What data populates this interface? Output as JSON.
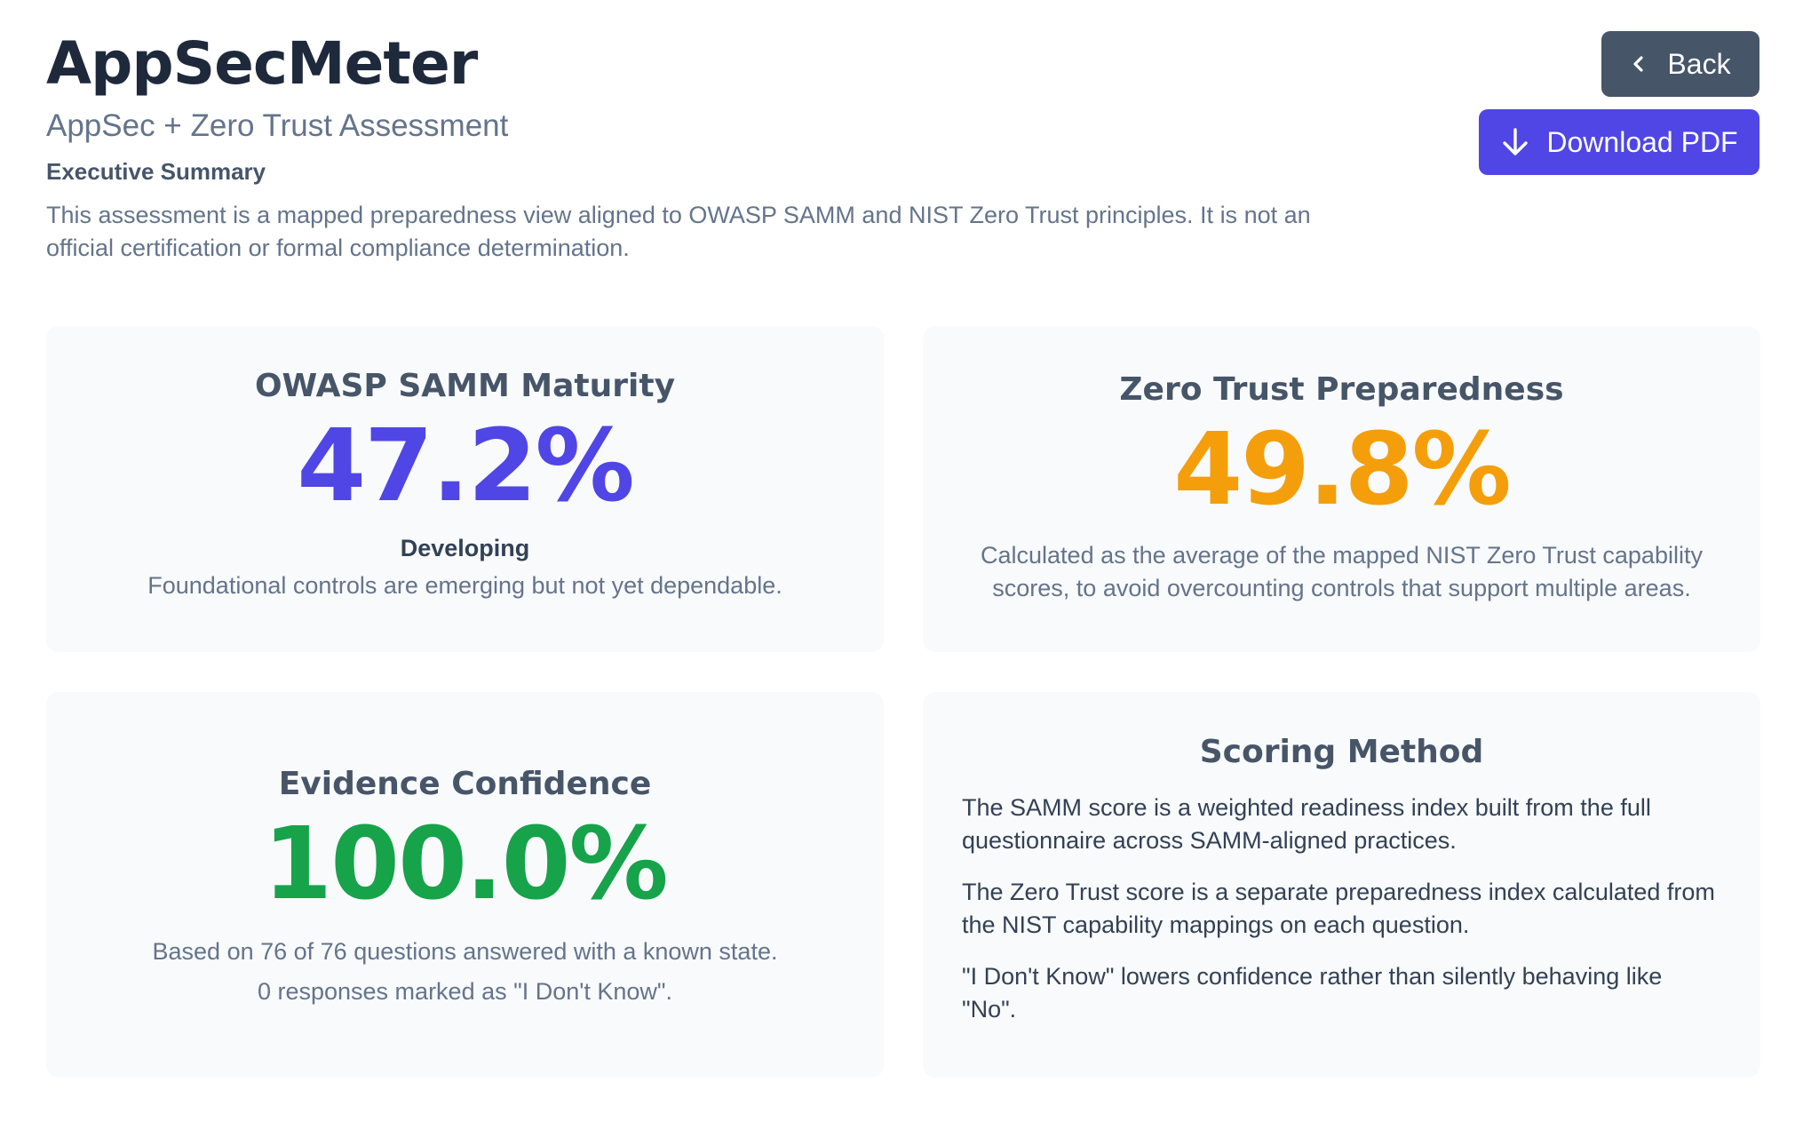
{
  "header": {
    "app_title": "AppSecMeter",
    "subtitle": "AppSec + Zero Trust Assessment",
    "section_label": "Executive Summary",
    "summary": "This assessment is a mapped preparedness view aligned to OWASP SAMM and NIST Zero Trust principles. It is not an official certification or formal compliance determination."
  },
  "actions": {
    "back_label": "Back",
    "back_icon": "chevron-left-icon",
    "download_label": "Download PDF",
    "download_icon": "arrow-down-icon",
    "back_color": "#475569",
    "download_color": "#4f46e5"
  },
  "cards": {
    "samm": {
      "title": "OWASP SAMM Maturity",
      "value": "47.2%",
      "level": "Developing",
      "description": "Foundational controls are emerging but not yet dependable.",
      "color": "#4f46e5"
    },
    "zero_trust": {
      "title": "Zero Trust Preparedness",
      "value": "49.8%",
      "description": "Calculated as the average of the mapped NIST Zero Trust capability scores, to avoid overcounting controls that support multiple areas.",
      "color": "#f59e0b"
    },
    "evidence": {
      "title": "Evidence Confidence",
      "value": "100.0%",
      "line1": "Based on 76 of 76 questions answered with a known state.",
      "line2": "0 responses marked as \"I Don't Know\".",
      "color": "#16a34a"
    },
    "scoring": {
      "title": "Scoring Method",
      "items": [
        "The SAMM score is a weighted readiness index built from the full questionnaire across SAMM-aligned practices.",
        "The Zero Trust score is a separate preparedness index calculated from the NIST capability mappings on each question.",
        "\"I Don't Know\" lowers confidence rather than silently behaving like \"No\"."
      ]
    }
  }
}
